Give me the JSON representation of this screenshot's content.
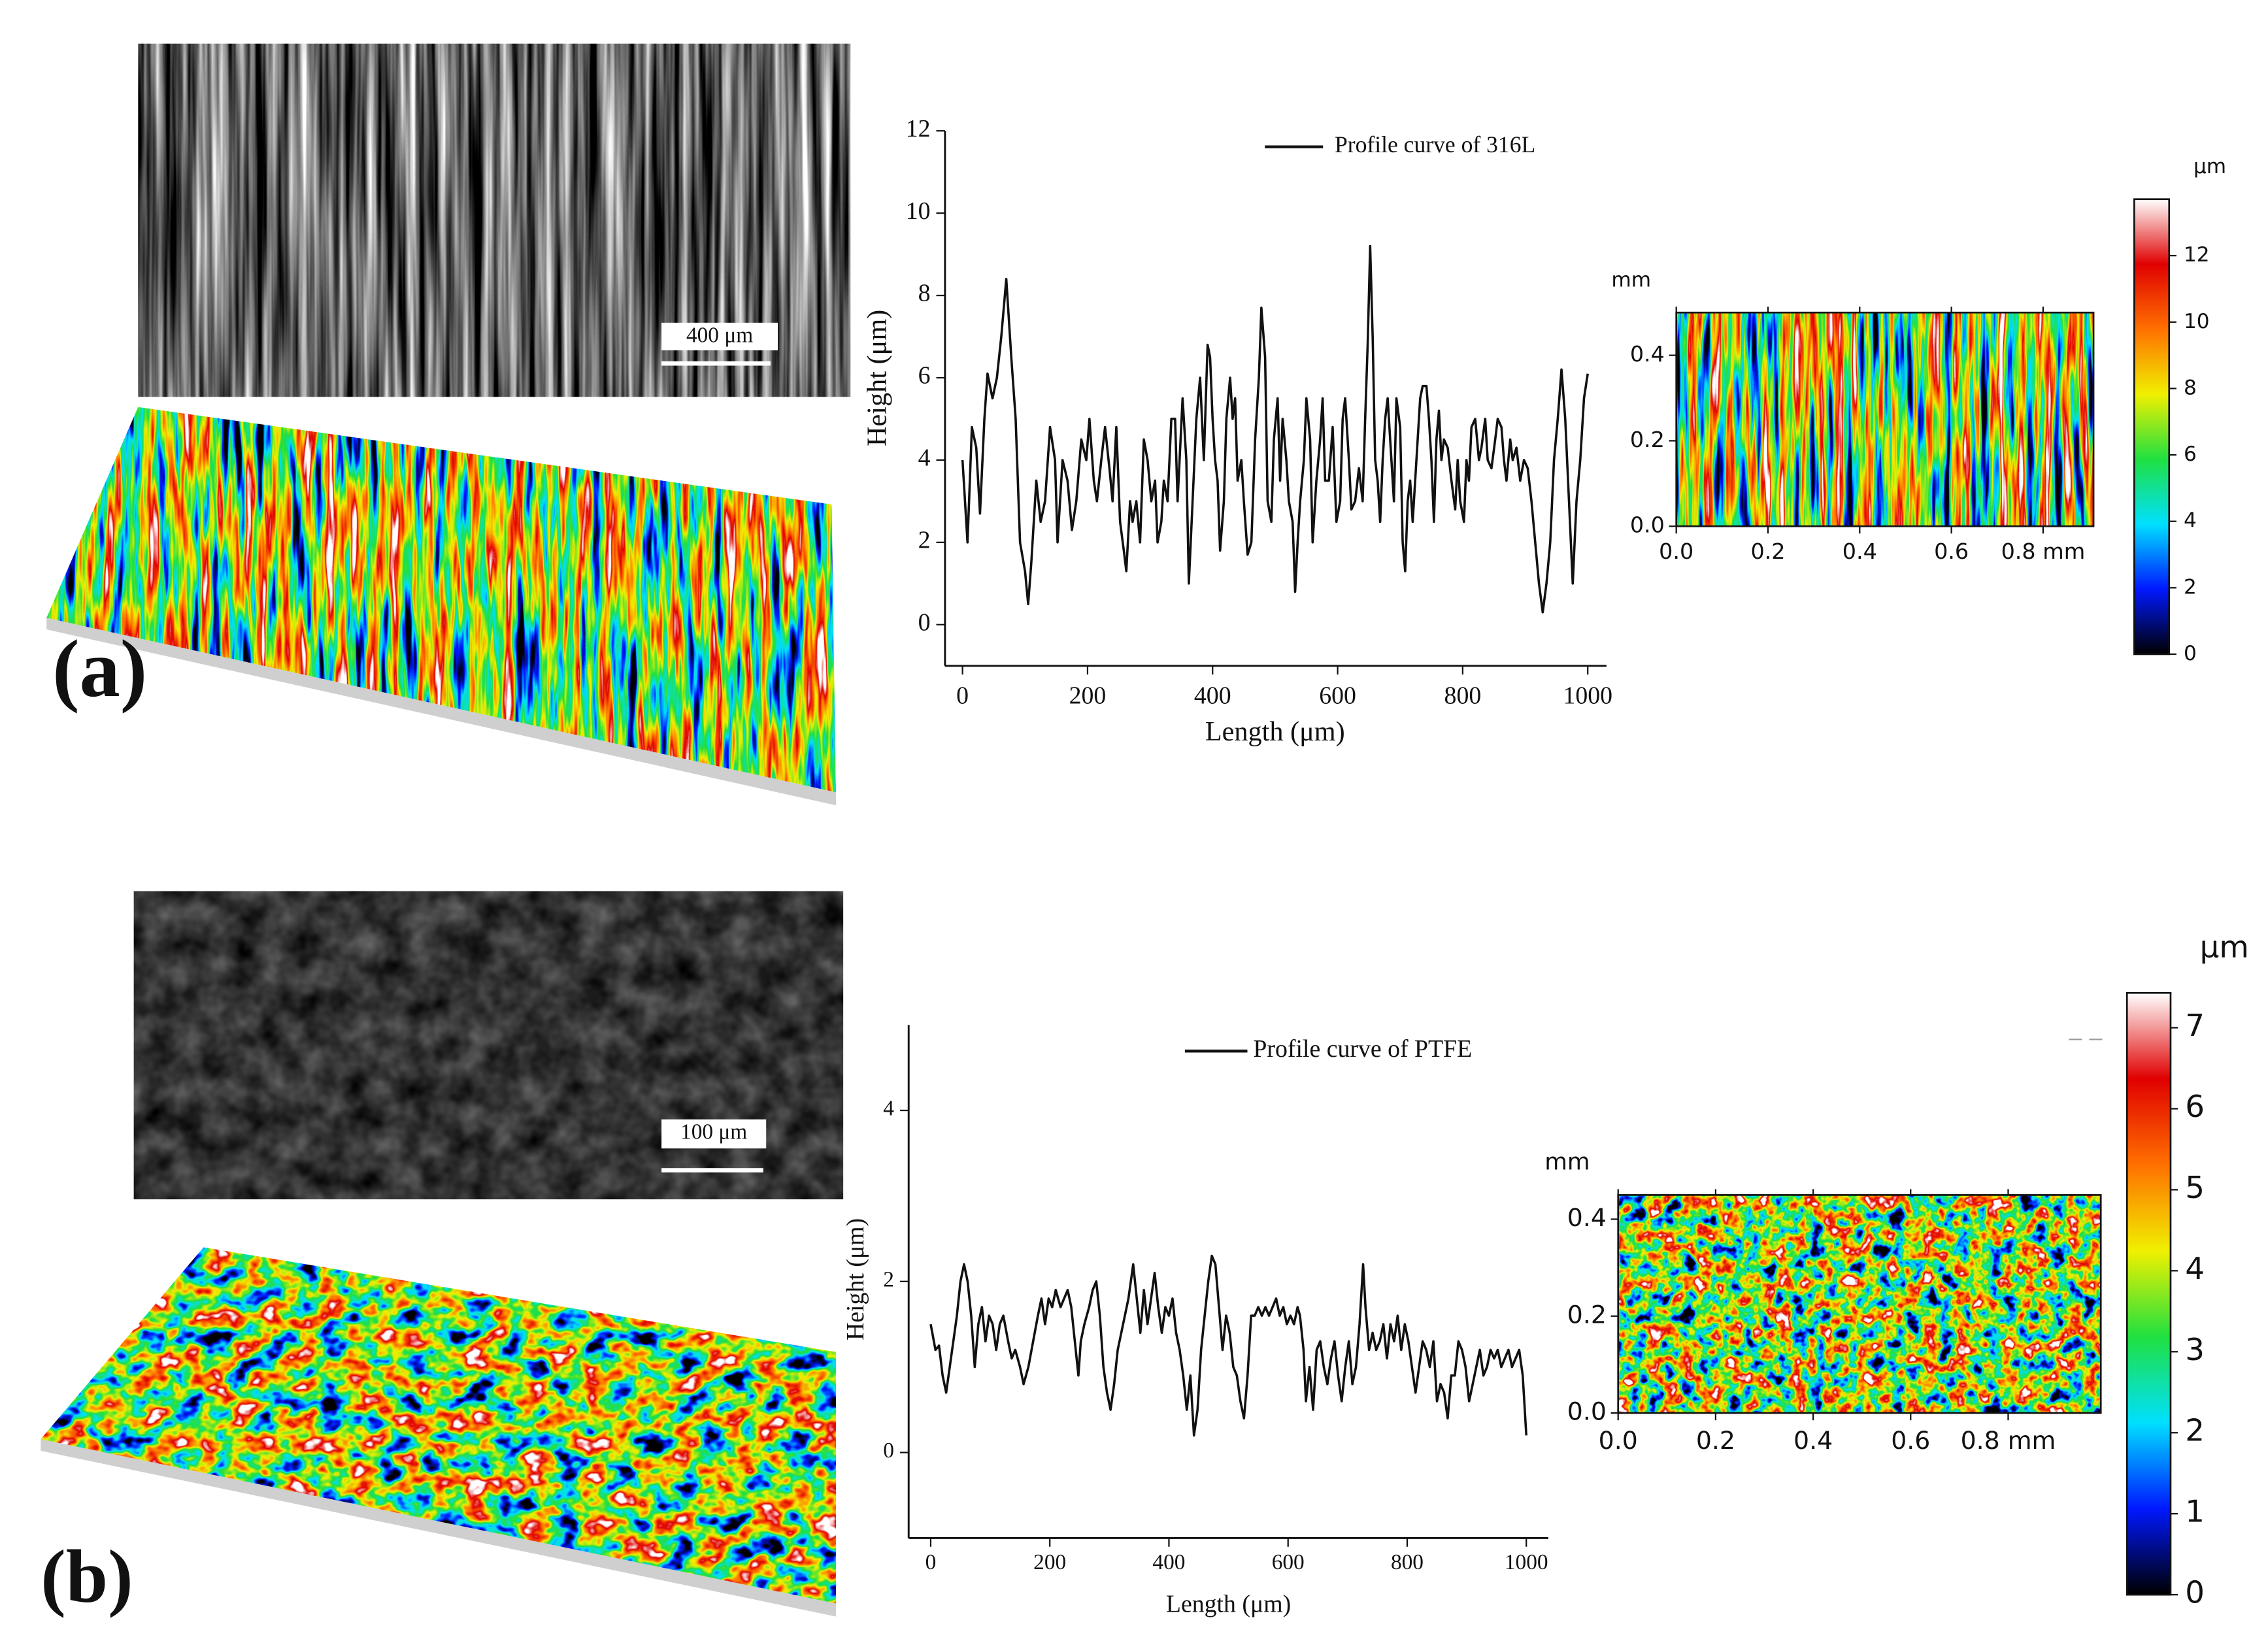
{
  "panels": [
    {
      "label": "(a)",
      "scale_bar": "400 μm"
    },
    {
      "label": "(b)",
      "scale_bar": "100 μm"
    }
  ],
  "chart_data": [
    {
      "type": "line",
      "x_label": "Length (μm)",
      "y_label": "Height (μm)",
      "x": [
        0,
        8,
        15,
        22,
        28,
        35,
        40,
        48,
        55,
        62,
        70,
        78,
        85,
        92,
        100,
        105,
        110,
        118,
        125,
        132,
        140,
        148,
        152,
        160,
        168,
        175,
        182,
        190,
        198,
        203,
        210,
        215,
        222,
        228,
        235,
        240,
        246,
        252,
        258,
        262,
        268,
        272,
        278,
        284,
        290,
        296,
        302,
        308,
        312,
        318,
        322,
        328,
        334,
        340,
        344,
        352,
        358,
        362,
        368,
        374,
        380,
        386,
        392,
        396,
        400,
        404,
        408,
        412,
        418,
        422,
        428,
        432,
        436,
        440,
        446,
        450,
        456,
        462,
        468,
        474,
        478,
        484,
        488,
        494,
        498,
        504,
        508,
        512,
        518,
        522,
        528,
        532,
        536,
        540,
        546,
        550,
        556,
        560,
        566,
        572,
        576,
        580,
        586,
        592,
        598,
        604,
        608,
        612,
        618,
        622,
        628,
        634,
        640,
        644,
        648,
        652,
        656,
        660,
        664,
        668,
        672,
        676,
        680,
        686,
        690,
        694,
        700,
        704,
        708,
        712,
        716,
        720,
        726,
        732,
        736,
        742,
        746,
        750,
        754,
        758,
        762,
        766,
        770,
        776,
        782,
        788,
        792,
        796,
        802,
        806,
        810,
        814,
        820,
        826,
        830,
        836,
        840,
        846,
        852,
        856,
        862,
        866,
        870,
        876,
        880,
        886,
        892,
        898,
        904,
        910,
        916,
        922,
        928,
        934,
        940,
        946,
        952,
        958,
        964,
        970,
        976,
        982,
        988,
        994,
        1000
      ],
      "series": [
        {
          "name": "Profile curve of  316L",
          "color": "#111111",
          "values": [
            4.0,
            2.0,
            4.8,
            4.3,
            2.7,
            5.0,
            6.1,
            5.5,
            6.0,
            7.0,
            8.4,
            6.5,
            5.0,
            2.0,
            1.3,
            0.5,
            1.5,
            3.5,
            2.5,
            3.0,
            4.8,
            4.0,
            2.0,
            4.0,
            3.5,
            2.3,
            3.0,
            4.5,
            4.0,
            5.0,
            3.5,
            3.0,
            4.0,
            4.8,
            3.8,
            3.0,
            4.8,
            2.5,
            1.8,
            1.3,
            3.0,
            2.5,
            3.0,
            2.0,
            4.5,
            4.0,
            3.0,
            3.5,
            2.0,
            2.5,
            3.5,
            3.0,
            5.0,
            5.0,
            3.0,
            5.5,
            4.0,
            1.0,
            3.0,
            5.0,
            6.0,
            4.0,
            6.8,
            6.5,
            5.0,
            4.0,
            3.5,
            1.8,
            3.0,
            5.0,
            6.0,
            5.0,
            5.5,
            3.5,
            4.0,
            3.0,
            1.7,
            2.0,
            4.5,
            6.0,
            7.7,
            6.5,
            3.0,
            2.5,
            4.5,
            5.5,
            3.5,
            5.0,
            4.0,
            3.0,
            2.5,
            0.8,
            2.0,
            3.0,
            4.0,
            5.5,
            4.5,
            2.0,
            3.5,
            4.5,
            5.5,
            3.5,
            3.5,
            4.8,
            2.5,
            3.0,
            5.0,
            5.5,
            4.0,
            2.8,
            3.0,
            3.8,
            3.0,
            5.0,
            6.8,
            9.2,
            7.0,
            4.0,
            3.5,
            2.5,
            4.0,
            5.0,
            5.5,
            4.0,
            3.0,
            5.5,
            4.8,
            2.0,
            1.3,
            3.0,
            3.5,
            2.5,
            4.0,
            5.5,
            5.8,
            5.8,
            5.0,
            4.0,
            2.5,
            4.5,
            5.2,
            4.0,
            4.5,
            4.3,
            3.5,
            2.8,
            4.0,
            3.0,
            2.5,
            4.0,
            3.5,
            4.8,
            5.0,
            4.0,
            4.3,
            5.0,
            4.0,
            3.8,
            4.5,
            5.0,
            4.8,
            4.0,
            3.5,
            4.5,
            4.0,
            4.3,
            3.5,
            4.0,
            3.8,
            3.0,
            2.0,
            1.0,
            0.3,
            1.0,
            2.0,
            4.0,
            5.0,
            6.2,
            5.0,
            3.0,
            1.0,
            3.0,
            4.0,
            5.5,
            6.1
          ]
        }
      ],
      "xlim": [
        -28,
        1030
      ],
      "xticks": [
        0,
        200,
        400,
        600,
        800,
        1000
      ],
      "ylim": [
        -1,
        12
      ],
      "yticks": [
        0,
        2,
        4,
        6,
        8,
        10,
        12
      ]
    },
    {
      "type": "heatmap",
      "y_label": "mm",
      "colorbar_label": "μm",
      "xlim": [
        0,
        0.91
      ],
      "xticks": [
        {
          "value": 0,
          "label": "0.0"
        },
        0.2,
        0.4,
        0.6,
        {
          "value": 0.8,
          "label": "0.8 mm"
        }
      ],
      "ylim": [
        0,
        0.5
      ],
      "yticks": [
        {
          "value": 0,
          "label": "0.0"
        },
        0.2,
        0.4
      ],
      "clim": [
        0,
        13.7
      ],
      "cticks": [
        0,
        2,
        4,
        6,
        8,
        10,
        12
      ],
      "colormap": [
        "#000000",
        "#0018ff",
        "#00e0ff",
        "#20e040",
        "#f0f000",
        "#ff7000",
        "#e00000",
        "#ffffff"
      ]
    },
    {
      "type": "line",
      "x_label": "Length (μm)",
      "y_label": "Height (μm)",
      "x": [
        0,
        8,
        14,
        20,
        26,
        32,
        38,
        44,
        50,
        56,
        62,
        68,
        74,
        80,
        86,
        92,
        98,
        104,
        110,
        116,
        122,
        130,
        136,
        142,
        150,
        156,
        164,
        172,
        180,
        186,
        192,
        198,
        204,
        210,
        218,
        224,
        230,
        236,
        242,
        248,
        252,
        258,
        266,
        272,
        278,
        284,
        290,
        296,
        302,
        308,
        314,
        320,
        326,
        332,
        340,
        346,
        352,
        358,
        364,
        370,
        376,
        382,
        388,
        394,
        400,
        406,
        412,
        418,
        424,
        430,
        436,
        442,
        448,
        454,
        460,
        466,
        472,
        478,
        484,
        490,
        496,
        502,
        508,
        514,
        520,
        526,
        532,
        538,
        544,
        550,
        556,
        562,
        568,
        574,
        580,
        586,
        592,
        598,
        604,
        610,
        616,
        620,
        626,
        630,
        636,
        642,
        648,
        654,
        660,
        666,
        672,
        678,
        684,
        690,
        696,
        702,
        708,
        714,
        720,
        726,
        730,
        736,
        742,
        748,
        754,
        760,
        766,
        772,
        778,
        784,
        790,
        796,
        802,
        808,
        814,
        820,
        826,
        832,
        838,
        844,
        850,
        856,
        862,
        868,
        874,
        880,
        886,
        892,
        898,
        904,
        910,
        916,
        922,
        928,
        934,
        940,
        946,
        952,
        958,
        964,
        970,
        976,
        982,
        988,
        994,
        1000
      ],
      "series": [
        {
          "name": "Profile curve of PTFE",
          "color": "#111111",
          "values": [
            1.5,
            1.2,
            1.25,
            0.9,
            0.7,
            1.0,
            1.3,
            1.6,
            2.0,
            2.2,
            2.0,
            1.6,
            1.0,
            1.5,
            1.7,
            1.3,
            1.6,
            1.5,
            1.2,
            1.5,
            1.6,
            1.3,
            1.1,
            1.2,
            1.0,
            0.8,
            1.0,
            1.3,
            1.6,
            1.8,
            1.5,
            1.8,
            1.7,
            1.9,
            1.7,
            1.8,
            1.9,
            1.7,
            1.3,
            0.9,
            1.3,
            1.5,
            1.7,
            1.9,
            2.0,
            1.6,
            1.0,
            0.7,
            0.5,
            0.8,
            1.2,
            1.4,
            1.6,
            1.8,
            2.2,
            1.8,
            1.4,
            1.9,
            1.5,
            1.8,
            2.1,
            1.7,
            1.4,
            1.7,
            1.6,
            1.8,
            1.4,
            1.2,
            0.9,
            0.5,
            0.9,
            0.2,
            0.5,
            1.2,
            1.6,
            2.0,
            2.3,
            2.2,
            1.7,
            1.2,
            1.6,
            1.4,
            1.0,
            0.9,
            0.6,
            0.4,
            0.9,
            1.6,
            1.6,
            1.7,
            1.6,
            1.7,
            1.6,
            1.7,
            1.8,
            1.6,
            1.7,
            1.5,
            1.6,
            1.5,
            1.7,
            1.6,
            1.2,
            0.6,
            1.0,
            0.5,
            1.2,
            1.3,
            1.0,
            0.8,
            1.1,
            1.3,
            0.9,
            0.6,
            1.0,
            1.3,
            0.8,
            1.0,
            1.5,
            2.2,
            1.7,
            1.2,
            1.4,
            1.2,
            1.3,
            1.5,
            1.1,
            1.5,
            1.3,
            1.6,
            1.2,
            1.5,
            1.3,
            1.0,
            0.7,
            1.0,
            1.3,
            1.2,
            1.0,
            1.3,
            0.6,
            0.8,
            0.7,
            0.4,
            0.9,
            0.9,
            1.3,
            1.2,
            1.0,
            0.6,
            0.8,
            1.0,
            1.2,
            0.9,
            1.0,
            1.2,
            1.1,
            1.2,
            1.0,
            1.1,
            1.2,
            1.0,
            1.1,
            1.2,
            0.9,
            0.2
          ]
        }
      ],
      "xlim": [
        -37,
        1037
      ],
      "xticks": [
        0,
        200,
        400,
        600,
        800,
        1000
      ],
      "ylim": [
        -1,
        5
      ],
      "yticks": [
        0,
        2,
        4
      ]
    },
    {
      "type": "heatmap",
      "y_label": "mm",
      "colorbar_label": "μm",
      "xlim": [
        0,
        0.99
      ],
      "xticks": [
        {
          "value": 0,
          "label": "0.0"
        },
        0.2,
        0.4,
        0.6,
        {
          "value": 0.8,
          "label": "0.8 mm"
        }
      ],
      "ylim": [
        0,
        0.45
      ],
      "yticks": [
        {
          "value": 0,
          "label": "0.0"
        },
        0.2,
        0.4
      ],
      "clim": [
        0,
        7.43
      ],
      "cticks": [
        0,
        1,
        2,
        3,
        4,
        5,
        6,
        7
      ],
      "colormap": [
        "#000000",
        "#0018ff",
        "#00e0ff",
        "#20e040",
        "#f0f000",
        "#ff7000",
        "#e00000",
        "#ffffff"
      ]
    }
  ]
}
